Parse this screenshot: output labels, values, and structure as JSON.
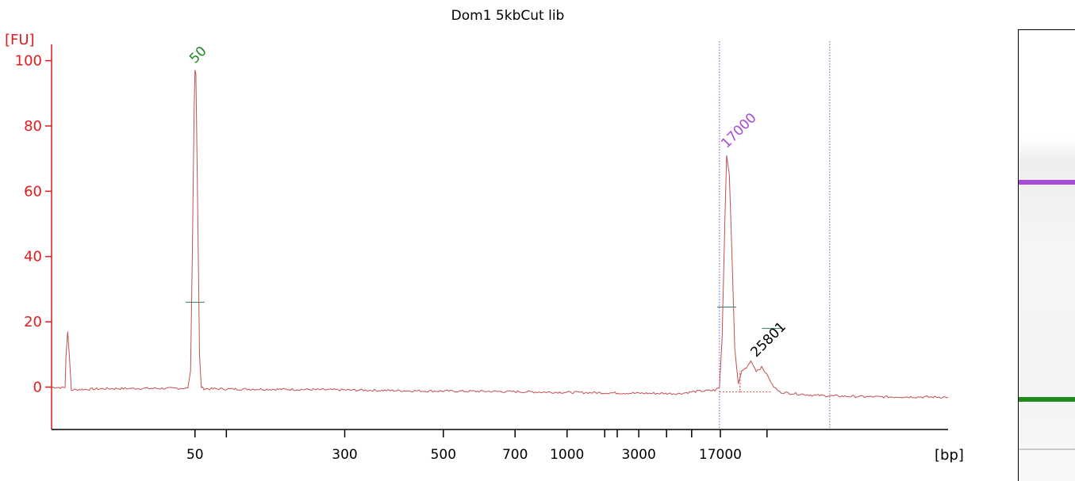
{
  "chart_data": {
    "type": "line",
    "title": "Dom1 5kbCut lib",
    "ylabel": "[FU]",
    "xlabel": "[bp]",
    "ylim": [
      -13,
      105
    ],
    "yticks": [
      0,
      20,
      40,
      60,
      80,
      100
    ],
    "xticks": [
      {
        "label": "50",
        "pos": 0.16
      },
      {
        "label": "",
        "pos": 0.195
      },
      {
        "label": "300",
        "pos": 0.327
      },
      {
        "label": "500",
        "pos": 0.437
      },
      {
        "label": "700",
        "pos": 0.517
      },
      {
        "label": "1000",
        "pos": 0.575
      },
      {
        "label": "",
        "pos": 0.617
      },
      {
        "label": "",
        "pos": 0.631
      },
      {
        "label": "3000",
        "pos": 0.655
      },
      {
        "label": "",
        "pos": 0.686
      },
      {
        "label": "",
        "pos": 0.714
      },
      {
        "label": "17000",
        "pos": 0.746
      },
      {
        "label": "",
        "pos": 0.798
      }
    ],
    "series": [
      {
        "color": "#c0504d",
        "points": [
          [
            0.0,
            0.0
          ],
          [
            0.015,
            -0.2
          ],
          [
            0.016,
            9
          ],
          [
            0.018,
            17
          ],
          [
            0.02,
            9
          ],
          [
            0.022,
            -1.0
          ],
          [
            0.024,
            -0.8
          ],
          [
            0.06,
            -0.5
          ],
          [
            0.1,
            -0.4
          ],
          [
            0.14,
            -0.4
          ],
          [
            0.152,
            -0.3
          ],
          [
            0.155,
            5
          ],
          [
            0.157,
            40
          ],
          [
            0.159,
            85
          ],
          [
            0.16,
            97
          ],
          [
            0.161,
            96
          ],
          [
            0.163,
            55
          ],
          [
            0.165,
            10
          ],
          [
            0.167,
            0
          ],
          [
            0.17,
            -0.5
          ],
          [
            0.2,
            -0.6
          ],
          [
            0.26,
            -0.7
          ],
          [
            0.3,
            -0.8
          ],
          [
            0.36,
            -1.0
          ],
          [
            0.42,
            -1.2
          ],
          [
            0.48,
            -1.3
          ],
          [
            0.54,
            -1.5
          ],
          [
            0.6,
            -1.7
          ],
          [
            0.66,
            -1.9
          ],
          [
            0.7,
            -2.0
          ],
          [
            0.72,
            -1.3
          ],
          [
            0.74,
            -1.0
          ],
          [
            0.745,
            0
          ],
          [
            0.748,
            15
          ],
          [
            0.751,
            50
          ],
          [
            0.753,
            71
          ],
          [
            0.756,
            65
          ],
          [
            0.759,
            40
          ],
          [
            0.762,
            12
          ],
          [
            0.766,
            1
          ],
          [
            0.77,
            5
          ],
          [
            0.775,
            6
          ],
          [
            0.78,
            8
          ],
          [
            0.786,
            5
          ],
          [
            0.792,
            6
          ],
          [
            0.798,
            4
          ],
          [
            0.804,
            0.5
          ],
          [
            0.812,
            -1.5
          ],
          [
            0.82,
            -1.8
          ],
          [
            0.85,
            -2.5
          ],
          [
            0.88,
            -2.8
          ],
          [
            0.92,
            -3.0
          ],
          [
            0.96,
            -3.0
          ],
          [
            1.0,
            -3.1
          ]
        ]
      }
    ],
    "peak_annotations": [
      {
        "label": "50",
        "color": "#1f8a1f",
        "pos": 0.16,
        "value": 99
      },
      {
        "label": "17000",
        "color": "#a64ad8",
        "pos": 0.753,
        "value": 73
      },
      {
        "label": "25801",
        "color": "#000000",
        "pos": 0.786,
        "value": 9
      }
    ],
    "half_height_markers": [
      {
        "pos": 0.16,
        "value": 26,
        "color": "#2e7d6a"
      },
      {
        "pos": 0.753,
        "value": 24.5,
        "color": "#2e7d6a"
      },
      {
        "pos": 0.803,
        "value": 18,
        "color": "#2e7d6a"
      }
    ],
    "region_lines": [
      0.745,
      0.868
    ],
    "grid": false,
    "gel_bands": [
      {
        "name": "upper marker",
        "color": "#a64ad8",
        "pos": 0.337
      },
      {
        "name": "lower marker",
        "color": "#1f8a1f",
        "pos": 0.818
      },
      {
        "name": "faint",
        "color": "#c8c8c8",
        "pos": 0.931
      }
    ]
  }
}
